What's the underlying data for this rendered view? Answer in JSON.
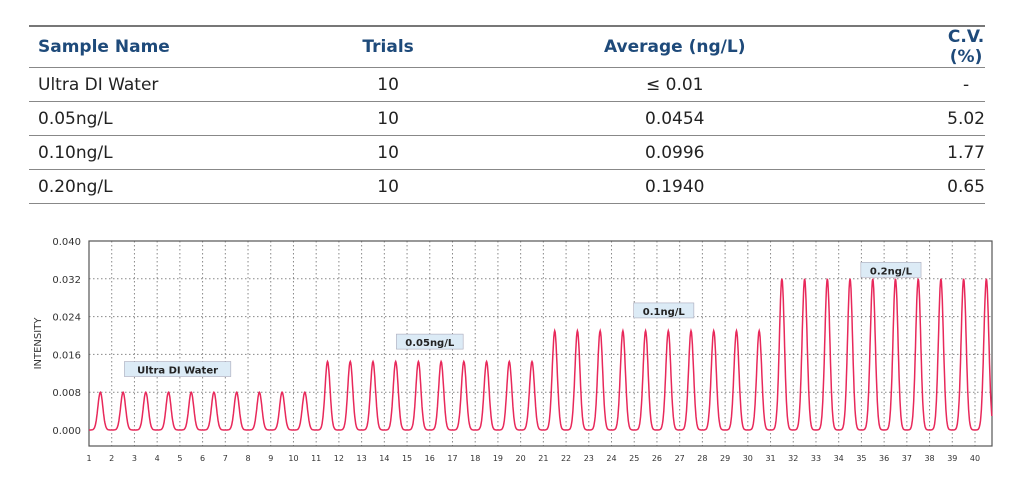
{
  "table": {
    "headers": [
      "Sample Name",
      "Trials",
      "Average (ng/L)",
      "C.V. (%)"
    ],
    "rows": [
      [
        "Ultra DI Water",
        "10",
        "≤ 0.01",
        "-"
      ],
      [
        "0.05ng/L",
        "10",
        "0.0454",
        "5.02"
      ],
      [
        "0.10ng/L",
        "10",
        "0.0996",
        "1.77"
      ],
      [
        "0.20ng/L",
        "10",
        "0.1940",
        "0.65"
      ]
    ]
  },
  "chart_data": {
    "type": "line",
    "title": "",
    "xlabel": "",
    "ylabel": "INTENSITY",
    "xlim": [
      1,
      40.75
    ],
    "ylim": [
      -0.0035,
      0.04
    ],
    "yticks": [
      "0.000",
      "0.008",
      "0.016",
      "0.024",
      "0.032",
      "0.040"
    ],
    "xticks": [
      "1",
      "2",
      "3",
      "4",
      "5",
      "6",
      "7",
      "8",
      "9",
      "10",
      "11",
      "12",
      "13",
      "14",
      "15",
      "16",
      "17",
      "18",
      "19",
      "20",
      "21",
      "22",
      "23",
      "24",
      "25",
      "26",
      "27",
      "28",
      "29",
      "30",
      "31",
      "32",
      "33",
      "34",
      "35",
      "36",
      "37",
      "38",
      "39",
      "40"
    ],
    "grid": true,
    "line_color": "#e8285a",
    "series": [
      {
        "name": "Ultra DI Water",
        "peak_x": [
          1.5,
          2.5,
          3.5,
          4.5,
          5.5,
          6.5,
          7.5,
          8.5,
          9.5,
          10.5
        ],
        "peak_heights": [
          0.008,
          0.008,
          0.008,
          0.008,
          0.008,
          0.008,
          0.008,
          0.008,
          0.008,
          0.008
        ]
      },
      {
        "name": "0.05ng/L",
        "peak_x": [
          11.5,
          12.5,
          13.5,
          14.5,
          15.5,
          16.5,
          17.5,
          18.5,
          19.5,
          20.5
        ],
        "peak_heights": [
          0.0145,
          0.0145,
          0.0145,
          0.0145,
          0.0145,
          0.0145,
          0.0145,
          0.0145,
          0.0145,
          0.0145
        ]
      },
      {
        "name": "0.1ng/L",
        "peak_x": [
          21.5,
          22.5,
          23.5,
          24.5,
          25.5,
          26.5,
          27.5,
          28.5,
          29.5,
          30.5
        ],
        "peak_heights": [
          0.021,
          0.021,
          0.021,
          0.021,
          0.021,
          0.021,
          0.021,
          0.021,
          0.021,
          0.021
        ]
      },
      {
        "name": "0.2ng/L",
        "peak_x": [
          31.5,
          32.5,
          33.5,
          34.5,
          35.5,
          36.5,
          37.5,
          38.5,
          39.5,
          40.5
        ],
        "peak_heights": [
          0.032,
          0.032,
          0.032,
          0.032,
          0.032,
          0.032,
          0.032,
          0.032,
          0.032,
          0.032
        ]
      }
    ],
    "annotations": [
      {
        "text": "Ultra DI Water",
        "x": 4.9,
        "y": 0.0128
      },
      {
        "text": "0.05ng/L",
        "x": 16.0,
        "y": 0.0186
      },
      {
        "text": "0.1ng/L",
        "x": 26.3,
        "y": 0.0252
      },
      {
        "text": "0.2ng/L",
        "x": 36.3,
        "y": 0.0338
      }
    ]
  }
}
